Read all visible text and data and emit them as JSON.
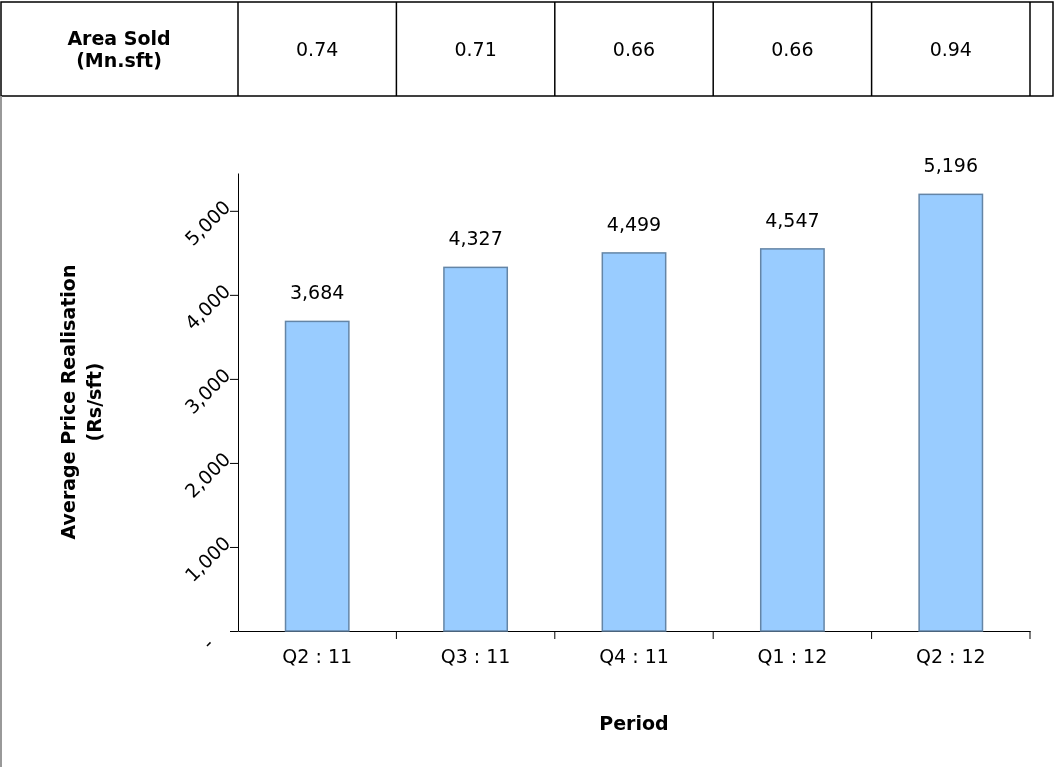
{
  "chart_data": [
    {
      "type": "other",
      "title": "Area Sold (Mn.sft)",
      "values": [
        0.74,
        0.71,
        0.66,
        0.66,
        0.94
      ],
      "data_labels": true
    },
    {
      "type": "bar",
      "categories": [
        "Q2 : 11",
        "Q3 : 11",
        "Q4 : 11",
        "Q1 : 12",
        "Q2 : 12"
      ],
      "values": [
        3684,
        4327,
        4499,
        4547,
        5196
      ],
      "color": "#99ccff",
      "xlabel": "Period",
      "ylabel": "Average Price Realisation (Rs/sft)",
      "ylim": [
        0,
        5450
      ],
      "yticks": [
        {
          "value": 0,
          "label": "-"
        },
        {
          "value": 1000,
          "label": "1,000"
        },
        {
          "value": 2000,
          "label": "2,000"
        },
        {
          "value": 3000,
          "label": "3,000"
        },
        {
          "value": 4000,
          "label": "4,000"
        },
        {
          "value": 5000,
          "label": "5,000"
        }
      ],
      "value_labels": [
        "3,684",
        "4,327",
        "4,499",
        "4,547",
        "5,196"
      ]
    }
  ]
}
